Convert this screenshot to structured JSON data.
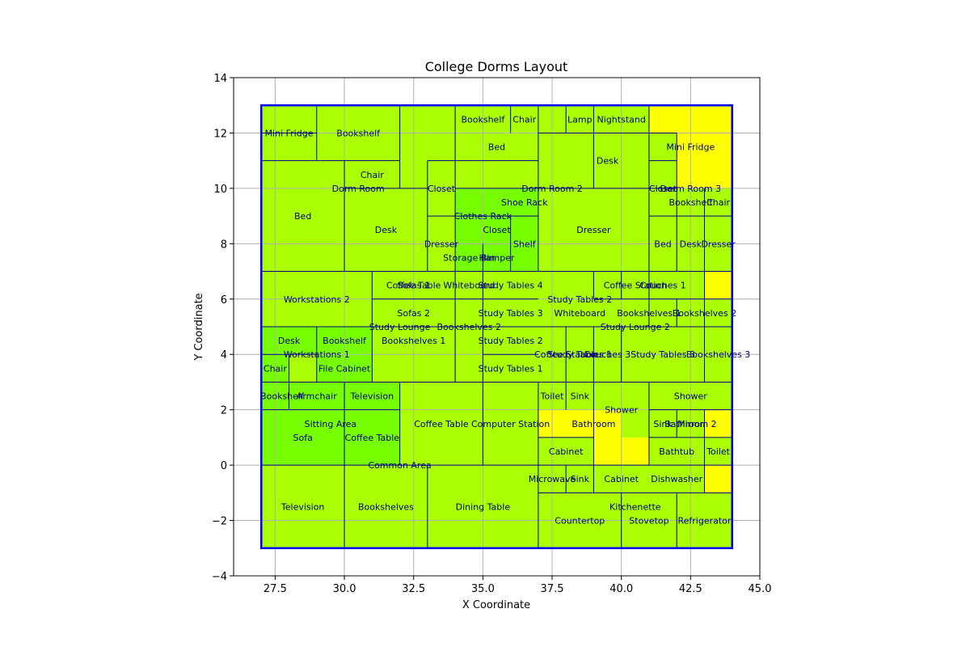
{
  "chart_data": {
    "type": "treemap-layout",
    "title": "College Dorms Layout",
    "xlabel": "X Coordinate",
    "ylabel": "Y Coordinate",
    "xlim": [
      26,
      45
    ],
    "ylim": [
      -4,
      14
    ],
    "xticks": [
      27.5,
      30.0,
      32.5,
      35.0,
      37.5,
      40.0,
      42.5,
      45.0
    ],
    "xtick_labels": [
      "27.5",
      "30.0",
      "32.5",
      "35.0",
      "37.5",
      "40.0",
      "42.5",
      "45.0"
    ],
    "yticks": [
      -4,
      -2,
      0,
      2,
      4,
      6,
      8,
      10,
      12,
      14
    ],
    "ytick_labels": [
      "−4",
      "−2",
      "0",
      "2",
      "4",
      "6",
      "8",
      "10",
      "12",
      "14"
    ],
    "grid": true,
    "colors": {
      "yellow": "#ffff00",
      "lime": "#aaff00",
      "green": "#77ff00",
      "edge": "#000080",
      "outer": "#0000ff"
    },
    "outline": {
      "x0": 27,
      "y0": -3,
      "x1": 44,
      "y1": 13
    },
    "rects": [
      {
        "x0": 27,
        "y0": -3,
        "x1": 44,
        "y1": 13,
        "fill": "yellow"
      },
      {
        "x0": 27,
        "y0": 7,
        "x1": 37,
        "y1": 13,
        "fill": "lime"
      },
      {
        "x0": 27,
        "y0": 12,
        "x1": 29,
        "y1": 13,
        "fill": "lime"
      },
      {
        "x0": 29,
        "y0": 11,
        "x1": 32,
        "y1": 13,
        "fill": "lime"
      },
      {
        "x0": 27,
        "y0": 7,
        "x1": 30,
        "y1": 11,
        "fill": "lime"
      },
      {
        "x0": 30,
        "y0": 10,
        "x1": 32,
        "y1": 11,
        "fill": "lime"
      },
      {
        "x0": 30,
        "y0": 7,
        "x1": 33,
        "y1": 10,
        "fill": "lime"
      },
      {
        "x0": 33,
        "y0": 9,
        "x1": 34,
        "y1": 11,
        "fill": "lime"
      },
      {
        "x0": 33,
        "y0": 7,
        "x1": 34,
        "y1": 9,
        "fill": "lime"
      },
      {
        "x0": 34,
        "y0": 7,
        "x1": 37,
        "y1": 10,
        "fill": "green"
      },
      {
        "x0": 36,
        "y0": 7,
        "x1": 37,
        "y1": 9,
        "fill": "green"
      },
      {
        "x0": 34,
        "y0": 11,
        "x1": 37,
        "y1": 13,
        "fill": "lime"
      },
      {
        "x0": 37,
        "y0": 7,
        "x1": 44,
        "y1": 13,
        "fill": "lime"
      },
      {
        "x0": 42,
        "y0": 10,
        "x1": 44,
        "y1": 13,
        "fill": "yellow"
      },
      {
        "x0": 41,
        "y0": 12,
        "x1": 42,
        "y1": 13,
        "fill": "yellow"
      },
      {
        "x0": 27,
        "y0": 5,
        "x1": 31,
        "y1": 7,
        "fill": "lime"
      },
      {
        "x0": 31,
        "y0": 3,
        "x1": 37,
        "y1": 7,
        "fill": "lime"
      },
      {
        "x0": 27,
        "y0": 3,
        "x1": 31,
        "y1": 5,
        "fill": "green"
      },
      {
        "x0": 28,
        "y0": 3,
        "x1": 29,
        "y1": 4,
        "fill": "lime"
      },
      {
        "x0": 37,
        "y0": 3,
        "x1": 44,
        "y1": 7,
        "fill": "lime"
      },
      {
        "x0": 43,
        "y0": 6,
        "x1": 44,
        "y1": 7,
        "fill": "yellow"
      },
      {
        "x0": 27,
        "y0": 0,
        "x1": 32,
        "y1": 3,
        "fill": "green"
      },
      {
        "x0": 32,
        "y0": 0,
        "x1": 37,
        "y1": 3,
        "fill": "lime"
      },
      {
        "x0": 27,
        "y0": -3,
        "x1": 37,
        "y1": 0,
        "fill": "lime"
      },
      {
        "x0": 37,
        "y0": -3,
        "x1": 44,
        "y1": 3,
        "fill": "lime"
      },
      {
        "x0": 37,
        "y0": 1,
        "x1": 40,
        "y1": 2,
        "fill": "yellow"
      },
      {
        "x0": 39,
        "y0": 0,
        "x1": 41,
        "y1": 1,
        "fill": "yellow"
      },
      {
        "x0": 43,
        "y0": 1,
        "x1": 44,
        "y1": 2,
        "fill": "yellow"
      },
      {
        "x0": 43,
        "y0": -1,
        "x1": 44,
        "y1": 0,
        "fill": "yellow"
      }
    ],
    "lines": [
      [
        27,
        12,
        29,
        12
      ],
      [
        29,
        11,
        29,
        13
      ],
      [
        32,
        11,
        32,
        13
      ],
      [
        27,
        11,
        32,
        11
      ],
      [
        30,
        7,
        30,
        11
      ],
      [
        30,
        10,
        33,
        10
      ],
      [
        32,
        10,
        32,
        11
      ],
      [
        33,
        7,
        33,
        11
      ],
      [
        33,
        11,
        34,
        11
      ],
      [
        33,
        9,
        34,
        9
      ],
      [
        34,
        7,
        34,
        13
      ],
      [
        34,
        11,
        37,
        11
      ],
      [
        36,
        12,
        36,
        13
      ],
      [
        34,
        10,
        37,
        10
      ],
      [
        36,
        7,
        36,
        9
      ],
      [
        35,
        7,
        35,
        8
      ],
      [
        34,
        9,
        37,
        9
      ],
      [
        37,
        7,
        37,
        13
      ],
      [
        38,
        12,
        38,
        13
      ],
      [
        39,
        12,
        39,
        13
      ],
      [
        39,
        10,
        39,
        12
      ],
      [
        41,
        10,
        41,
        13
      ],
      [
        37,
        12,
        42,
        12
      ],
      [
        37,
        10,
        41,
        10
      ],
      [
        41,
        10,
        42,
        10
      ],
      [
        41,
        11,
        42,
        11
      ],
      [
        42,
        7,
        42,
        12
      ],
      [
        41,
        7,
        41,
        10
      ],
      [
        41,
        9,
        44,
        9
      ],
      [
        43,
        7,
        43,
        10
      ],
      [
        27,
        7,
        44,
        7
      ],
      [
        27,
        5,
        44,
        5
      ],
      [
        31,
        3,
        31,
        7
      ],
      [
        31,
        6,
        37,
        6
      ],
      [
        34,
        3,
        34,
        7
      ],
      [
        35,
        3,
        35,
        7
      ],
      [
        35,
        4,
        37,
        4
      ],
      [
        29,
        3,
        29,
        5
      ],
      [
        28,
        3,
        28,
        4
      ],
      [
        27,
        4,
        29,
        4
      ],
      [
        39,
        6,
        39,
        7
      ],
      [
        40,
        6,
        40,
        7
      ],
      [
        39,
        6,
        44,
        6
      ],
      [
        41,
        5,
        41,
        7
      ],
      [
        42,
        5,
        42,
        6
      ],
      [
        43,
        3,
        43,
        7
      ],
      [
        38,
        3,
        38,
        5
      ],
      [
        39,
        3,
        39,
        5
      ],
      [
        40,
        3,
        40,
        5
      ],
      [
        27,
        3,
        44,
        3
      ],
      [
        27,
        2,
        32,
        2
      ],
      [
        28,
        2,
        28,
        3
      ],
      [
        30,
        2,
        30,
        3
      ],
      [
        30,
        0,
        30,
        2
      ],
      [
        32,
        0,
        32,
        3
      ],
      [
        35,
        0,
        35,
        3
      ],
      [
        27,
        0,
        37,
        0
      ],
      [
        37,
        -3,
        37,
        3
      ],
      [
        30,
        -3,
        30,
        0
      ],
      [
        33,
        -3,
        33,
        0
      ],
      [
        38,
        2,
        38,
        3
      ],
      [
        39,
        0,
        39,
        3
      ],
      [
        41,
        0,
        41,
        3
      ],
      [
        37,
        1,
        39,
        1
      ],
      [
        41,
        2,
        44,
        2
      ],
      [
        41,
        1,
        44,
        1
      ],
      [
        42,
        1,
        42,
        2
      ],
      [
        43,
        -1,
        43,
        2
      ],
      [
        37,
        0,
        44,
        0
      ],
      [
        38,
        -1,
        38,
        0
      ],
      [
        39,
        -1,
        39,
        0
      ],
      [
        37,
        -1,
        44,
        -1
      ],
      [
        40,
        -3,
        40,
        -1
      ],
      [
        42,
        -3,
        42,
        -1
      ]
    ],
    "labels": [
      {
        "text": "Mini Fridge",
        "x": 28.0,
        "y": 12.0
      },
      {
        "text": "Bookshelf",
        "x": 30.5,
        "y": 12.0
      },
      {
        "text": "Chair",
        "x": 31.0,
        "y": 10.5
      },
      {
        "text": "Dorm Room",
        "x": 30.5,
        "y": 10.0
      },
      {
        "text": "Bed",
        "x": 28.5,
        "y": 9.0
      },
      {
        "text": "Desk",
        "x": 31.5,
        "y": 8.5
      },
      {
        "text": "Closet",
        "x": 33.5,
        "y": 10.0
      },
      {
        "text": "Dresser",
        "x": 33.5,
        "y": 8.0
      },
      {
        "text": "Bookshelf",
        "x": 35.0,
        "y": 12.5
      },
      {
        "text": "Chair",
        "x": 36.5,
        "y": 12.5
      },
      {
        "text": "Bed",
        "x": 35.5,
        "y": 11.5
      },
      {
        "text": "Shoe Rack",
        "x": 36.5,
        "y": 9.5
      },
      {
        "text": "Clothes Rack",
        "x": 35.0,
        "y": 9.0
      },
      {
        "text": "Closet",
        "x": 35.5,
        "y": 8.5
      },
      {
        "text": "Shelf",
        "x": 36.5,
        "y": 8.0
      },
      {
        "text": "Storage Bin",
        "x": 34.5,
        "y": 7.5
      },
      {
        "text": "Hamper",
        "x": 35.5,
        "y": 7.5
      },
      {
        "text": "Lamp",
        "x": 38.5,
        "y": 12.5
      },
      {
        "text": "Nightstand",
        "x": 40.0,
        "y": 12.5
      },
      {
        "text": "Mini Fridge",
        "x": 42.5,
        "y": 11.5
      },
      {
        "text": "Desk",
        "x": 39.5,
        "y": 11.0
      },
      {
        "text": "Dorm Room 2",
        "x": 37.5,
        "y": 10.0
      },
      {
        "text": "Closet",
        "x": 41.5,
        "y": 10.0
      },
      {
        "text": "Dorm Room 3",
        "x": 42.5,
        "y": 10.0
      },
      {
        "text": "Bookshelf",
        "x": 42.5,
        "y": 9.5
      },
      {
        "text": "Chair",
        "x": 43.5,
        "y": 9.5
      },
      {
        "text": "Dresser",
        "x": 39.0,
        "y": 8.5
      },
      {
        "text": "Bed",
        "x": 41.5,
        "y": 8.0
      },
      {
        "text": "Desk",
        "x": 42.5,
        "y": 8.0
      },
      {
        "text": "Dresser",
        "x": 43.5,
        "y": 8.0
      },
      {
        "text": "Workstations 2",
        "x": 29.0,
        "y": 6.0
      },
      {
        "text": "Coffee Table",
        "x": 32.5,
        "y": 6.5
      },
      {
        "text": "Sofas 1",
        "x": 32.5,
        "y": 6.5
      },
      {
        "text": "Whiteboard",
        "x": 34.5,
        "y": 6.5
      },
      {
        "text": "Study Tables 4",
        "x": 36.0,
        "y": 6.5
      },
      {
        "text": "Sofas 2",
        "x": 32.5,
        "y": 5.5
      },
      {
        "text": "Study Tables 3",
        "x": 36.0,
        "y": 5.5
      },
      {
        "text": "Study Lounge",
        "x": 32.0,
        "y": 5.0
      },
      {
        "text": "Bookshelves 2",
        "x": 34.5,
        "y": 5.0
      },
      {
        "text": "Bookshelves 1",
        "x": 32.5,
        "y": 4.5
      },
      {
        "text": "Study Tables 2",
        "x": 36.0,
        "y": 4.5
      },
      {
        "text": "Study Tables 1",
        "x": 36.0,
        "y": 3.5
      },
      {
        "text": "Desk",
        "x": 28.0,
        "y": 4.5
      },
      {
        "text": "Bookshelf",
        "x": 30.0,
        "y": 4.5
      },
      {
        "text": "Workstations 1",
        "x": 29.0,
        "y": 4.0
      },
      {
        "text": "Chair",
        "x": 27.5,
        "y": 3.5
      },
      {
        "text": "File Cabinet",
        "x": 30.0,
        "y": 3.5
      },
      {
        "text": "Coffee Station",
        "x": 40.5,
        "y": 6.5
      },
      {
        "text": "Couches 1",
        "x": 41.5,
        "y": 6.5
      },
      {
        "text": "Study Tables 2",
        "x": 38.5,
        "y": 6.0
      },
      {
        "text": "Whiteboard",
        "x": 38.5,
        "y": 5.5
      },
      {
        "text": "Bookshelves 1",
        "x": 41.0,
        "y": 5.5
      },
      {
        "text": "Bookshelves 2",
        "x": 43.0,
        "y": 5.5
      },
      {
        "text": "Study Lounge 2",
        "x": 40.5,
        "y": 5.0
      },
      {
        "text": "Coffee Station",
        "x": 38.0,
        "y": 4.0
      },
      {
        "text": "Study Tables 1",
        "x": 38.5,
        "y": 4.0
      },
      {
        "text": "Couches 3",
        "x": 39.5,
        "y": 4.0
      },
      {
        "text": "Study Tables 3",
        "x": 41.5,
        "y": 4.0
      },
      {
        "text": "Bookshelves 3",
        "x": 43.5,
        "y": 4.0
      },
      {
        "text": "Bookshelf",
        "x": 27.75,
        "y": 2.5
      },
      {
        "text": "Armchair",
        "x": 29.0,
        "y": 2.5
      },
      {
        "text": "Television",
        "x": 31.0,
        "y": 2.5
      },
      {
        "text": "Sitting Area",
        "x": 29.5,
        "y": 1.5
      },
      {
        "text": "Sofa",
        "x": 28.5,
        "y": 1.0
      },
      {
        "text": "Coffee Table",
        "x": 31.0,
        "y": 1.0
      },
      {
        "text": "Coffee Table",
        "x": 33.5,
        "y": 1.5
      },
      {
        "text": "Computer Station",
        "x": 36.0,
        "y": 1.5
      },
      {
        "text": "Common Area",
        "x": 32.0,
        "y": 0.0
      },
      {
        "text": "Television",
        "x": 28.5,
        "y": -1.5
      },
      {
        "text": "Bookshelves",
        "x": 31.5,
        "y": -1.5
      },
      {
        "text": "Dining Table",
        "x": 35.0,
        "y": -1.5
      },
      {
        "text": "Toilet",
        "x": 37.5,
        "y": 2.5
      },
      {
        "text": "Sink",
        "x": 38.5,
        "y": 2.5
      },
      {
        "text": "Shower",
        "x": 40.0,
        "y": 2.0
      },
      {
        "text": "Shower",
        "x": 42.5,
        "y": 2.5
      },
      {
        "text": "Bathroom",
        "x": 39.0,
        "y": 1.5
      },
      {
        "text": "Sink",
        "x": 41.5,
        "y": 1.5
      },
      {
        "text": "Bathroom 2",
        "x": 42.5,
        "y": 1.5
      },
      {
        "text": "Mirror",
        "x": 42.5,
        "y": 1.5
      },
      {
        "text": "Cabinet",
        "x": 38.0,
        "y": 0.5
      },
      {
        "text": "Bathtub",
        "x": 42.0,
        "y": 0.5
      },
      {
        "text": "Toilet",
        "x": 43.5,
        "y": 0.5
      },
      {
        "text": "Microwave",
        "x": 37.5,
        "y": -0.5
      },
      {
        "text": "Sink",
        "x": 38.5,
        "y": -0.5
      },
      {
        "text": "Cabinet",
        "x": 40.0,
        "y": -0.5
      },
      {
        "text": "Dishwasher",
        "x": 42.0,
        "y": -0.5
      },
      {
        "text": "Kitchenette",
        "x": 40.5,
        "y": -1.5
      },
      {
        "text": "Countertop",
        "x": 38.5,
        "y": -2.0
      },
      {
        "text": "Stovetop",
        "x": 41.0,
        "y": -2.0
      },
      {
        "text": "Refrigerator",
        "x": 43.0,
        "y": -2.0
      }
    ]
  }
}
